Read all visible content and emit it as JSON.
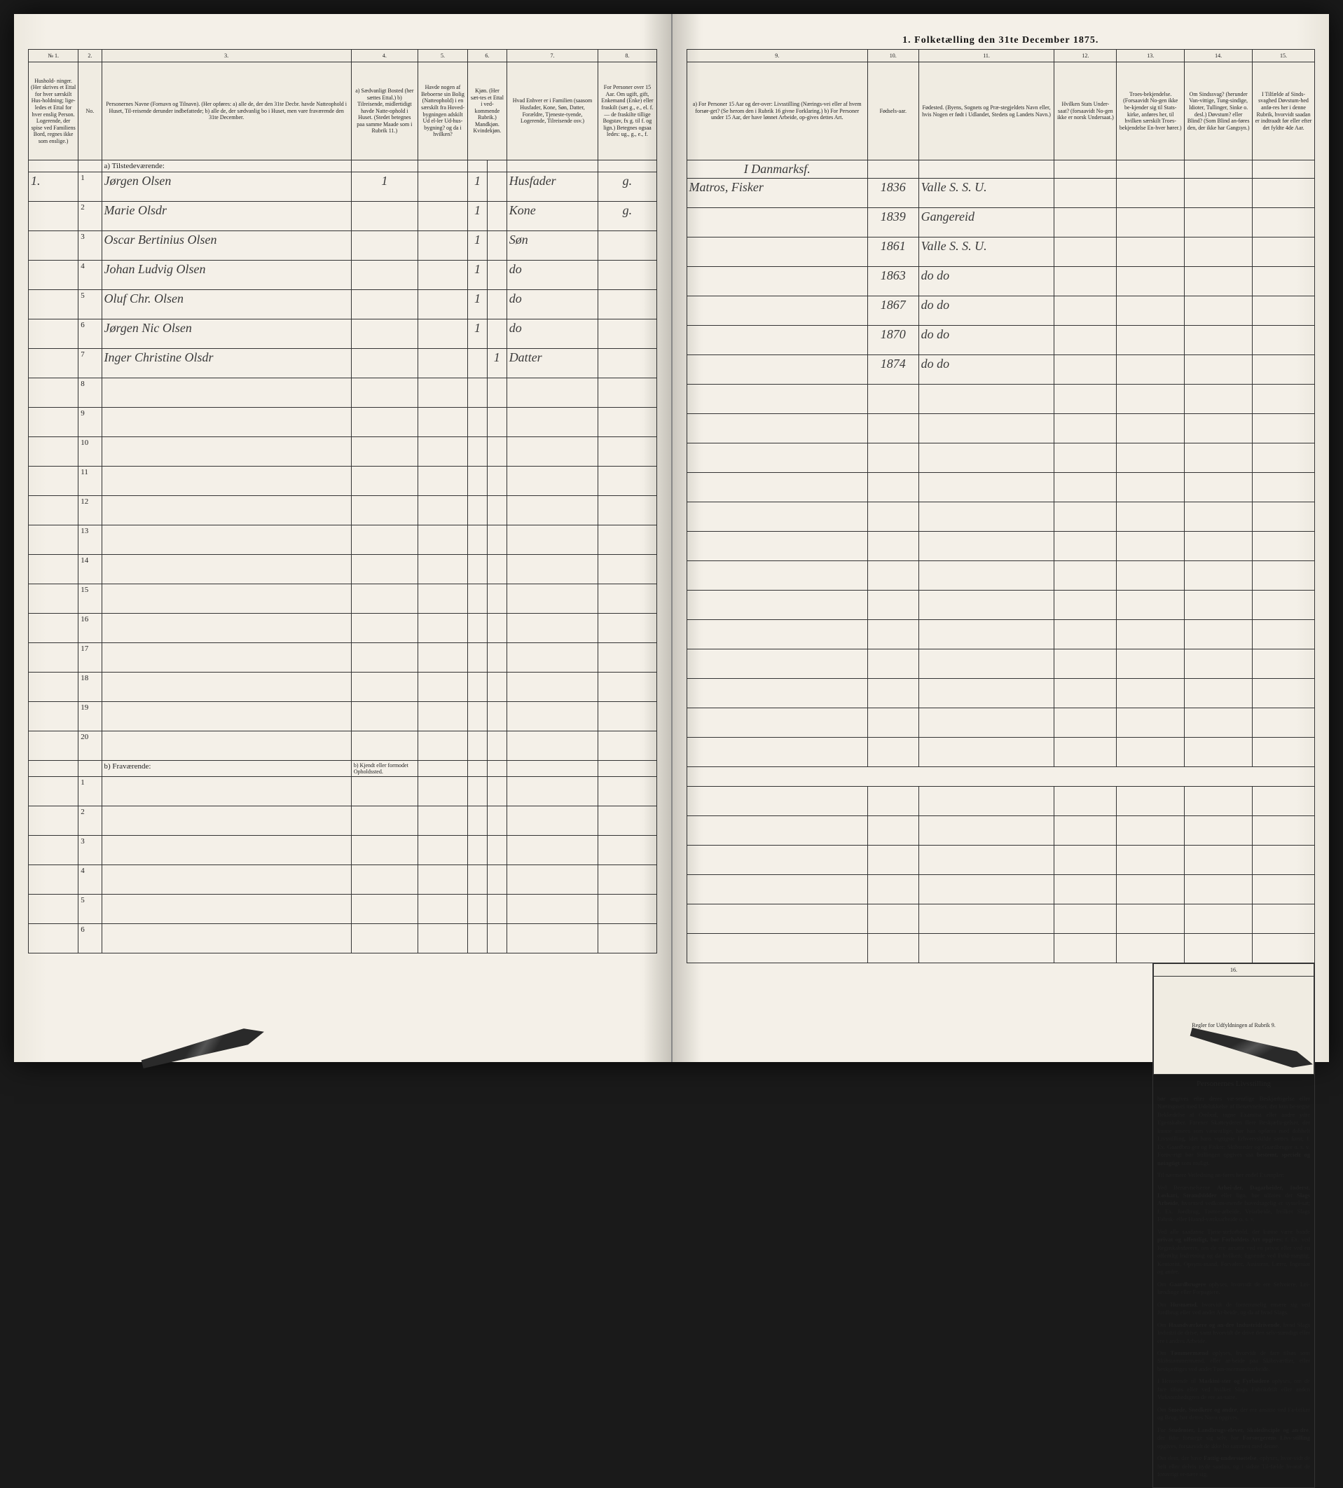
{
  "topTitle": "1. Folketælling den 31te December 1875.",
  "columnNumbers": [
    "№ 1.",
    "2.",
    "3.",
    "4.",
    "5.",
    "6.",
    "7.",
    "8.",
    "9.",
    "10.",
    "11.",
    "12.",
    "13.",
    "14.",
    "15.",
    "16."
  ],
  "headersLeft": {
    "c1": "Hushold-\nninger.\n(Her skrives et Ettal for hver særskilt Hus-holdning; lige-ledes et Ettal for hver enslig Person.\nLogerende, der spise ved Familiens Bord, regnes ikke som enslige.)",
    "c2": "No.",
    "c3": "Personernes Navne (Fornavn og Tilnavn).\n(Her opføres:\na) alle de, der den 31te Decbr. havde Natteophold i Huset, Til-reisende derunder indbefattede;\nb) alle de, der sædvanlig bo i Huset, men vare fraværende den 31te December.",
    "c4": "a) Sædvanligt Bosted (her sættes Ettal.)\nb) Tilreisende, midlertidigt havde Natte-ophold i Huset. (Stedet betegnes paa samme Maade som i Rubrik 11.)",
    "c5": "Havde nogen af Beboerne sin Bolig (Natteophold) i en særskilt fra Hoved-bygningen adskilt Ud el-ler Ud-hus-bygning? og da i hvilken?",
    "c6": "Kjøn.\n(Her sæt-tes et Ettal i ved-kommende Rubrik.)\nMandkjøn. Kvindekjøn.",
    "c7": "Hvad Enhver er i Familien\n(saasom Husfader, Kone, Søn, Datter, Forældre, Tjeneste-tyende, Logerende, Tilreisende osv.)",
    "c8": "For Personer over 15 Aar. Om ugift, gift, Enkemand (Enke) eller fraskilt (sæt g., e., el. f. — de fraskilte tillige Bogstav, fx g. til f. og lign.) Betegnes ogsaa ledes: ug., g., e., f."
  },
  "headersRight": {
    "c9": "a) For Personer 15 Aar og der-over: Livsstilling (Nærings-vei eller af hvem forsør-get? (Se herom den i Rubrik 16 givne Forklaring.)\nb) For Personer under 15 Aar, der have lønnet Arbeide, op-gives dettes Art.",
    "c10": "Fødsels-aar.",
    "c11": "Fødested.\n(Byens, Sognets og Præ-stegjeldets Navn eller, hvis Nogen er født i Udlandet, Stedets og Landets Navn.)",
    "c12": "Hvilken Stats Under-saat?\n(forsaavidt No-gen ikke er norsk Undersaat.)",
    "c13": "Troes-bekjendelse.\n(Forsaavidt No-gen ikke be-kjender sig til Stats-kirke, anføres her, til hvilken særskilt Troes-bekjendelse En-hver hører.)",
    "c14": "Om Sindssvag?\n(herunder Van-vittige, Tung-sindige, Idioter, Tullinger, Sinke o. desl.) Døvstum? eller Blind? (Som Blind an-føres den, der ikke har Gangsyn.)",
    "c15": "I Tilfælde af Sinds-svaghed Døvstum-hed anfø-res her i denne Rubrik, hvorvidt saadan er indtraadt før eller efter det fyldte 4de Aar.",
    "c16": "Regler for Udfyldningen\naf\nRubrik 9."
  },
  "sectionA": "a) Tilstedeværende:",
  "sectionB": "b) Fraværende:",
  "sectionBNote": "b) Kjendt eller formodet Opholdssted.",
  "occupationHeader": "I Danmarksf.",
  "rows": [
    {
      "n": "1",
      "hh": "1.",
      "name": "Jørgen Olsen",
      "res": "1",
      "sex": "1",
      "rel": "Husfader",
      "civ": "g.",
      "occ": "Matros, Fisker",
      "year": "1836",
      "place": "Valle S. S. U."
    },
    {
      "n": "2",
      "hh": "",
      "name": "Marie Olsdr",
      "res": "",
      "sex": "1",
      "rel": "Kone",
      "civ": "g.",
      "occ": "",
      "year": "1839",
      "place": "Gangereid"
    },
    {
      "n": "3",
      "hh": "",
      "name": "Oscar Bertinius Olsen",
      "res": "",
      "sex": "1",
      "rel": "Søn",
      "civ": "",
      "occ": "",
      "year": "1861",
      "place": "Valle S. S. U."
    },
    {
      "n": "4",
      "hh": "",
      "name": "Johan Ludvig Olsen",
      "res": "",
      "sex": "1",
      "rel": "do",
      "civ": "",
      "occ": "",
      "year": "1863",
      "place": "do   do"
    },
    {
      "n": "5",
      "hh": "",
      "name": "Oluf Chr. Olsen",
      "res": "",
      "sex": "1",
      "rel": "do",
      "civ": "",
      "occ": "",
      "year": "1867",
      "place": "do   do"
    },
    {
      "n": "6",
      "hh": "",
      "name": "Jørgen Nic Olsen",
      "res": "",
      "sex": "1",
      "rel": "do",
      "civ": "",
      "occ": "",
      "year": "1870",
      "place": "do   do"
    },
    {
      "n": "7",
      "hh": "",
      "name": "Inger Christine Olsdr",
      "res": "",
      "sex": "1",
      "rel": "Datter",
      "civ": "",
      "occ": "",
      "year": "1874",
      "place": "do   do"
    }
  ],
  "emptyRowsA": [
    8,
    9,
    10,
    11,
    12,
    13,
    14,
    15,
    16,
    17,
    18,
    19,
    20
  ],
  "emptyRowsB": [
    1,
    2,
    3,
    4,
    5,
    6
  ],
  "rulesTitle": "Personernes Livsstilling",
  "rulesParas": [
    "bør angives efter deres væ-sentlige Beskjæftigelse eller Næringsvei med Udelukkelse af Benævnelser, der kun be-tegne Beklædelse af Ombud, tagne Examina eller andre ydre Egenskaber. Forener Skatteyderen flere Beskjæfti-gelser, der kunne ansees som væsentlige, bør han opføres med dobbelt Livsstilling, idet hans vigtigste Erhvervskilde sættes først; f. Ex. Gaardbru-ger og Fisker; Skibsreder og Gaardbruger o. s. v. Forøv-rigt bør Stillingen opgives saa <b>bestemt, specielt og nøiagtigt</b> som muligt.",
    "Til nærmere Veiledning an-føres her endel Exempler:",
    "Ved Benævnelserne <b>Arbei-der, Dagarbeider, Inderst, Løskari, Strandsidder</b> eller lign. bør tilføies det <b>Slags Arbeide</b>, hvormed vedkom-mende hovedsagelig er syssel-sat; f. Ex. Jordbrug, Tømte-arbeide, Veiarbeide, hvilket Slags Fabrik- eller Haand-værksarbeide o. s. v.",
    "Ved alle saadanne Tjene-steforhold, der kunne være baade <b>privat og offentligt, bør Forholdets Art opgives</b>; f. Ex. ved Regnskabsførere, om de ere ansatte ved en privat eller ved en offentlig Indretning og da hvilken; lignende ved Fuld-mægtig, Kontorist, Opsyns-mand, Forvalter, Assistent, Lærer, Ingeniør og andre.",
    "Om <b>Gaardbrugere</b> oplyses, hvorvidt de ere Selveiere, Lei-lændinge eller Forpagtere.",
    "Om <b>Husmænd</b>, hvorvidt de fornemmelig ernære sig ved Jordbrug eller ved andet Ar-beide, og da af hvad Slags.",
    "Om <b>Haandværkere og an-dre Industridrivende</b>, hvad Slags Industri de drive, samt hvorvidt de drive den selv-stændigt eller ere i andres Arbeide.",
    "Om <b>Tømmermænd</b> oplyses, hvorvidt de fare tilsøs som Skibstømmermænd, eller ar-beide paa Skibsværfter, eller beskjæftiges ved andet Tøm-mermandsarbeide.",
    "I Henseende til <b>Maskini-ster og Fyrbødere</b> oplyses, om de fare tilsøs eller ved hvilket Slags Fabrikdrift eller anden Virksomhedsgren de ere an-satte.",
    "Om <b>Smede, Snedkere og andre</b>, der ere ansatte ved Fa-briker og Brug, bør dettes Navn opgives.",
    "For <b>Studenter, Landbrugs-elever, Skoledisciple og an-dre</b>, der ikke forsørge sig selv, bør <b>Forsørgerens Livs-stilling</b> opgives, forsaavidt de ikke bo sammen med denne.",
    "Om dem, der have <b>Fattig-understøttelse</b>, oplyses, hvor-vidt de helt eller delvis nyde saadan, og i sidste Til-fælde hvoraf de forøvrigt er-nære sig."
  ]
}
